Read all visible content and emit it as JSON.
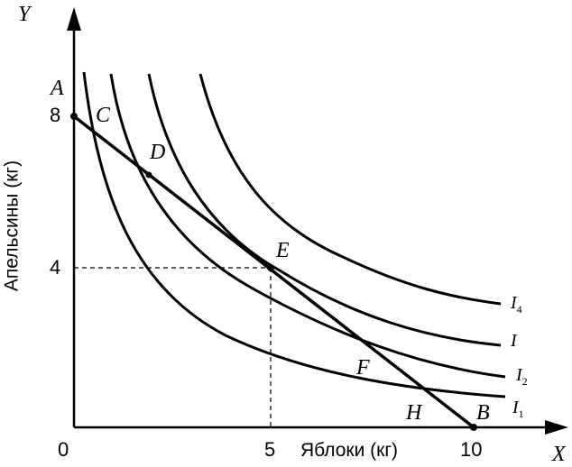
{
  "axes": {
    "y_letter": "Y",
    "x_letter": "X",
    "y_label": "Апельсины (кг)",
    "x_label": "Яблоки (кг)"
  },
  "ticks": {
    "origin": "0",
    "x5": "5",
    "x10": "10",
    "y4": "4",
    "y8": "8"
  },
  "points": {
    "A": "A",
    "B": "B",
    "C": "C",
    "D": "D",
    "E": "E",
    "F": "F",
    "H": "H"
  },
  "curves": [
    {
      "letter": "I",
      "sub": "4"
    },
    {
      "letter": "I",
      "sub": ""
    },
    {
      "letter": "I",
      "sub": "2"
    },
    {
      "letter": "I",
      "sub": "1"
    }
  ],
  "budget_line": {
    "y_intercept": 8,
    "x_intercept": 10
  },
  "optimum": {
    "x": 5,
    "y": 4
  }
}
